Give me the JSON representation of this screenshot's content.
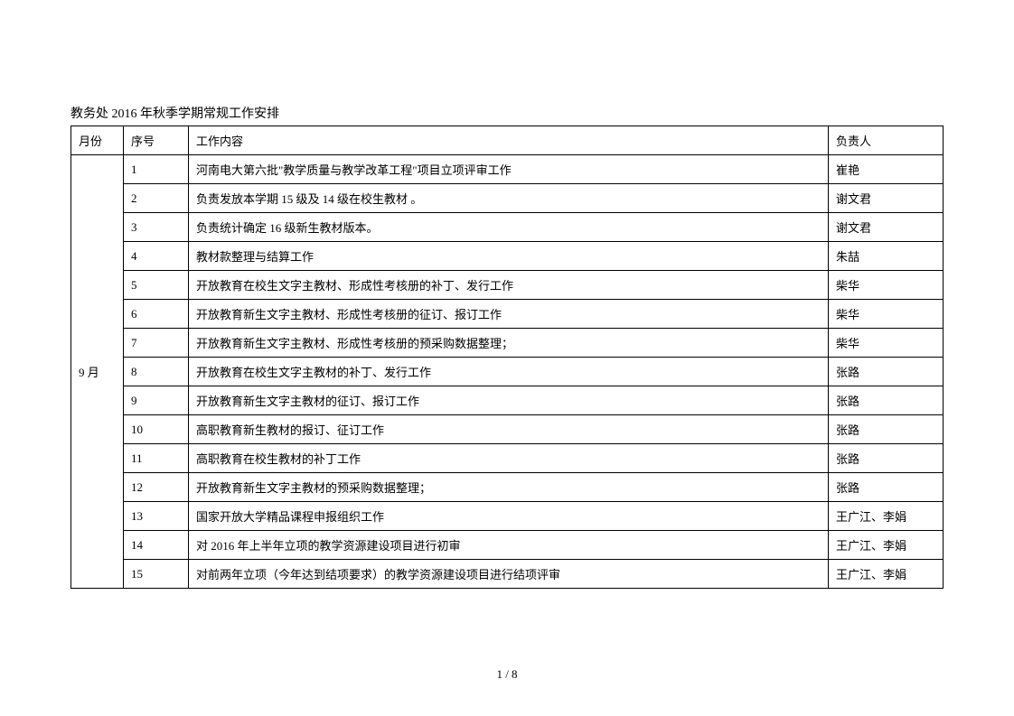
{
  "title": "教务处 2016 年秋季学期常规工作安排",
  "headers": {
    "month": "月份",
    "index": "序号",
    "content": "工作内容",
    "person": "负责人"
  },
  "month_label": "9 月",
  "rows": [
    {
      "index": "1",
      "content": "河南电大第六批\"教学质量与教学改革工程\"项目立项评审工作",
      "person": "崔艳"
    },
    {
      "index": "2",
      "content": "负责发放本学期 15 级及 14 级在校生教材 。",
      "person": "谢文君"
    },
    {
      "index": "3",
      "content": "负责统计确定 16 级新生教材版本。",
      "person": "谢文君"
    },
    {
      "index": "4",
      "content": "教材款整理与结算工作",
      "person": "朱喆"
    },
    {
      "index": "5",
      "content": "开放教育在校生文字主教材、形成性考核册的补丁、发行工作",
      "person": "柴华"
    },
    {
      "index": "6",
      "content": "开放教育新生文字主教材、形成性考核册的征订、报订工作",
      "person": "柴华"
    },
    {
      "index": "7",
      "content": "开放教育新生文字主教材、形成性考核册的预采购数据整理；",
      "person": "柴华"
    },
    {
      "index": "8",
      "content": "开放教育在校生文字主教材的补丁、发行工作",
      "person": "张路"
    },
    {
      "index": "9",
      "content": "开放教育新生文字主教材的征订、报订工作",
      "person": "张路"
    },
    {
      "index": "10",
      "content": "高职教育新生教材的报订、征订工作",
      "person": "张路"
    },
    {
      "index": "11",
      "content": "高职教育在校生教材的补丁工作",
      "person": "张路"
    },
    {
      "index": "12",
      "content": "开放教育新生文字主教材的预采购数据整理；",
      "person": "张路"
    },
    {
      "index": "13",
      "content": "国家开放大学精品课程申报组织工作",
      "person": "王广江、李娟"
    },
    {
      "index": "14",
      "content": "对 2016 年上半年立项的教学资源建设项目进行初审",
      "person": "王广江、李娟"
    },
    {
      "index": "15",
      "content": "对前两年立项（今年达到结项要求）的教学资源建设项目进行结项评审",
      "person": "王广江、李娟"
    }
  ],
  "footer": "1 / 8"
}
